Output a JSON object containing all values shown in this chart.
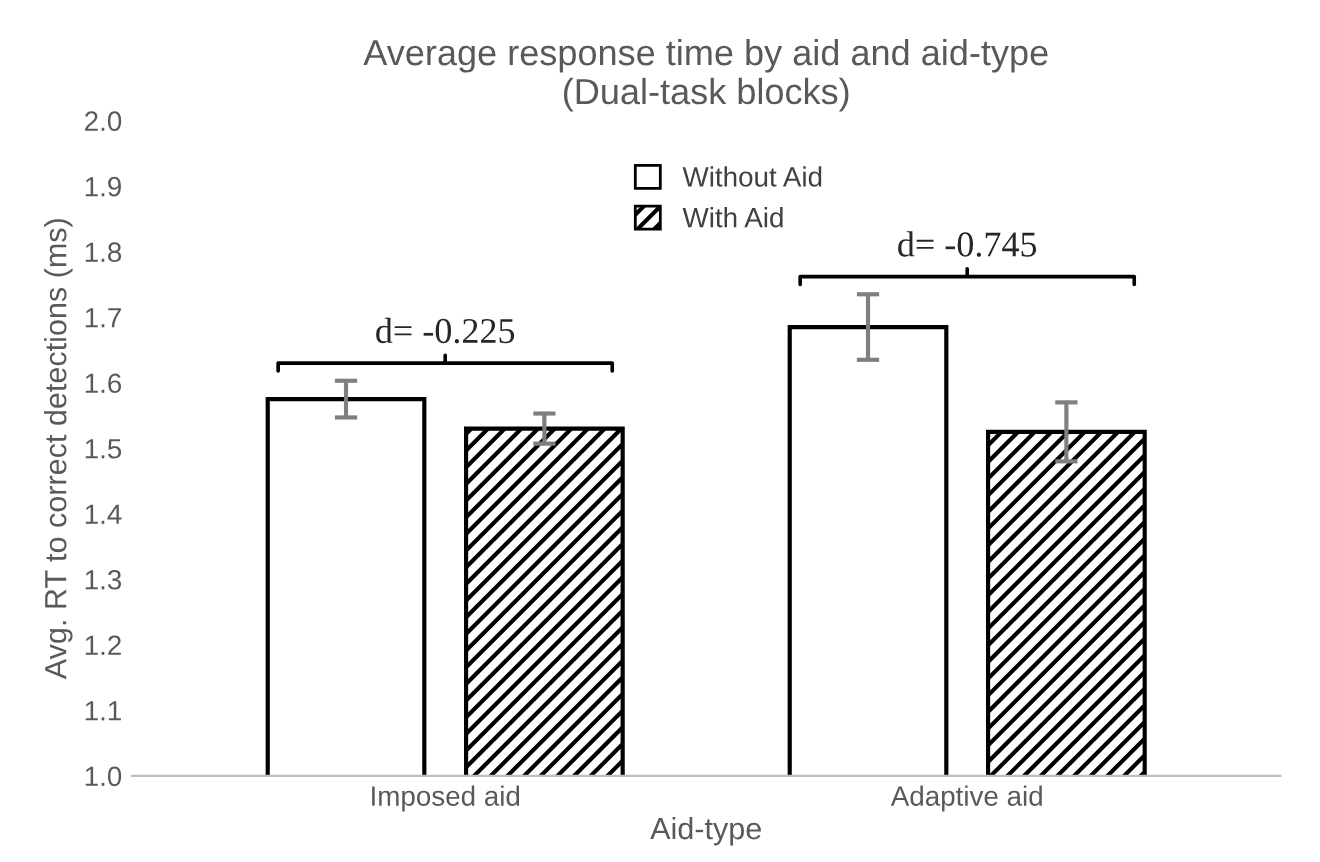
{
  "chart_data": {
    "type": "bar",
    "title": "Average response time by aid and aid-type\n(Dual-task blocks)",
    "xlabel": "Aid-type",
    "ylabel": "Avg. RT to correct detections (ms)",
    "categories": [
      "Imposed aid",
      "Adaptive aid"
    ],
    "series": [
      {
        "name": "Without Aid",
        "color": "#ffffff",
        "values": [
          1.575,
          1.685
        ],
        "errors": [
          0.028,
          0.05
        ]
      },
      {
        "name": "With Aid",
        "color": "#000000",
        "values": [
          1.53,
          1.525
        ],
        "errors": [
          0.023,
          0.045
        ]
      }
    ],
    "annotations": [
      "d= -0.225",
      "d= -0.745"
    ],
    "ylim": [
      1.0,
      2.0
    ],
    "yticks": [
      {
        "value": 1.0,
        "label": "1.0"
      },
      {
        "value": 1.1,
        "label": "1.1"
      },
      {
        "value": 1.2,
        "label": "1.2"
      },
      {
        "value": 1.3,
        "label": "1.3"
      },
      {
        "value": 1.4,
        "label": "1.4"
      },
      {
        "value": 1.5,
        "label": "1.5"
      },
      {
        "value": 1.6,
        "label": "1.6"
      },
      {
        "value": 1.7,
        "label": "1.7"
      },
      {
        "value": 1.8,
        "label": "1.8"
      },
      {
        "value": 1.9,
        "label": "1.9"
      },
      {
        "value": 2.0,
        "label": "2.0"
      }
    ],
    "grid": false,
    "legend": "top"
  }
}
